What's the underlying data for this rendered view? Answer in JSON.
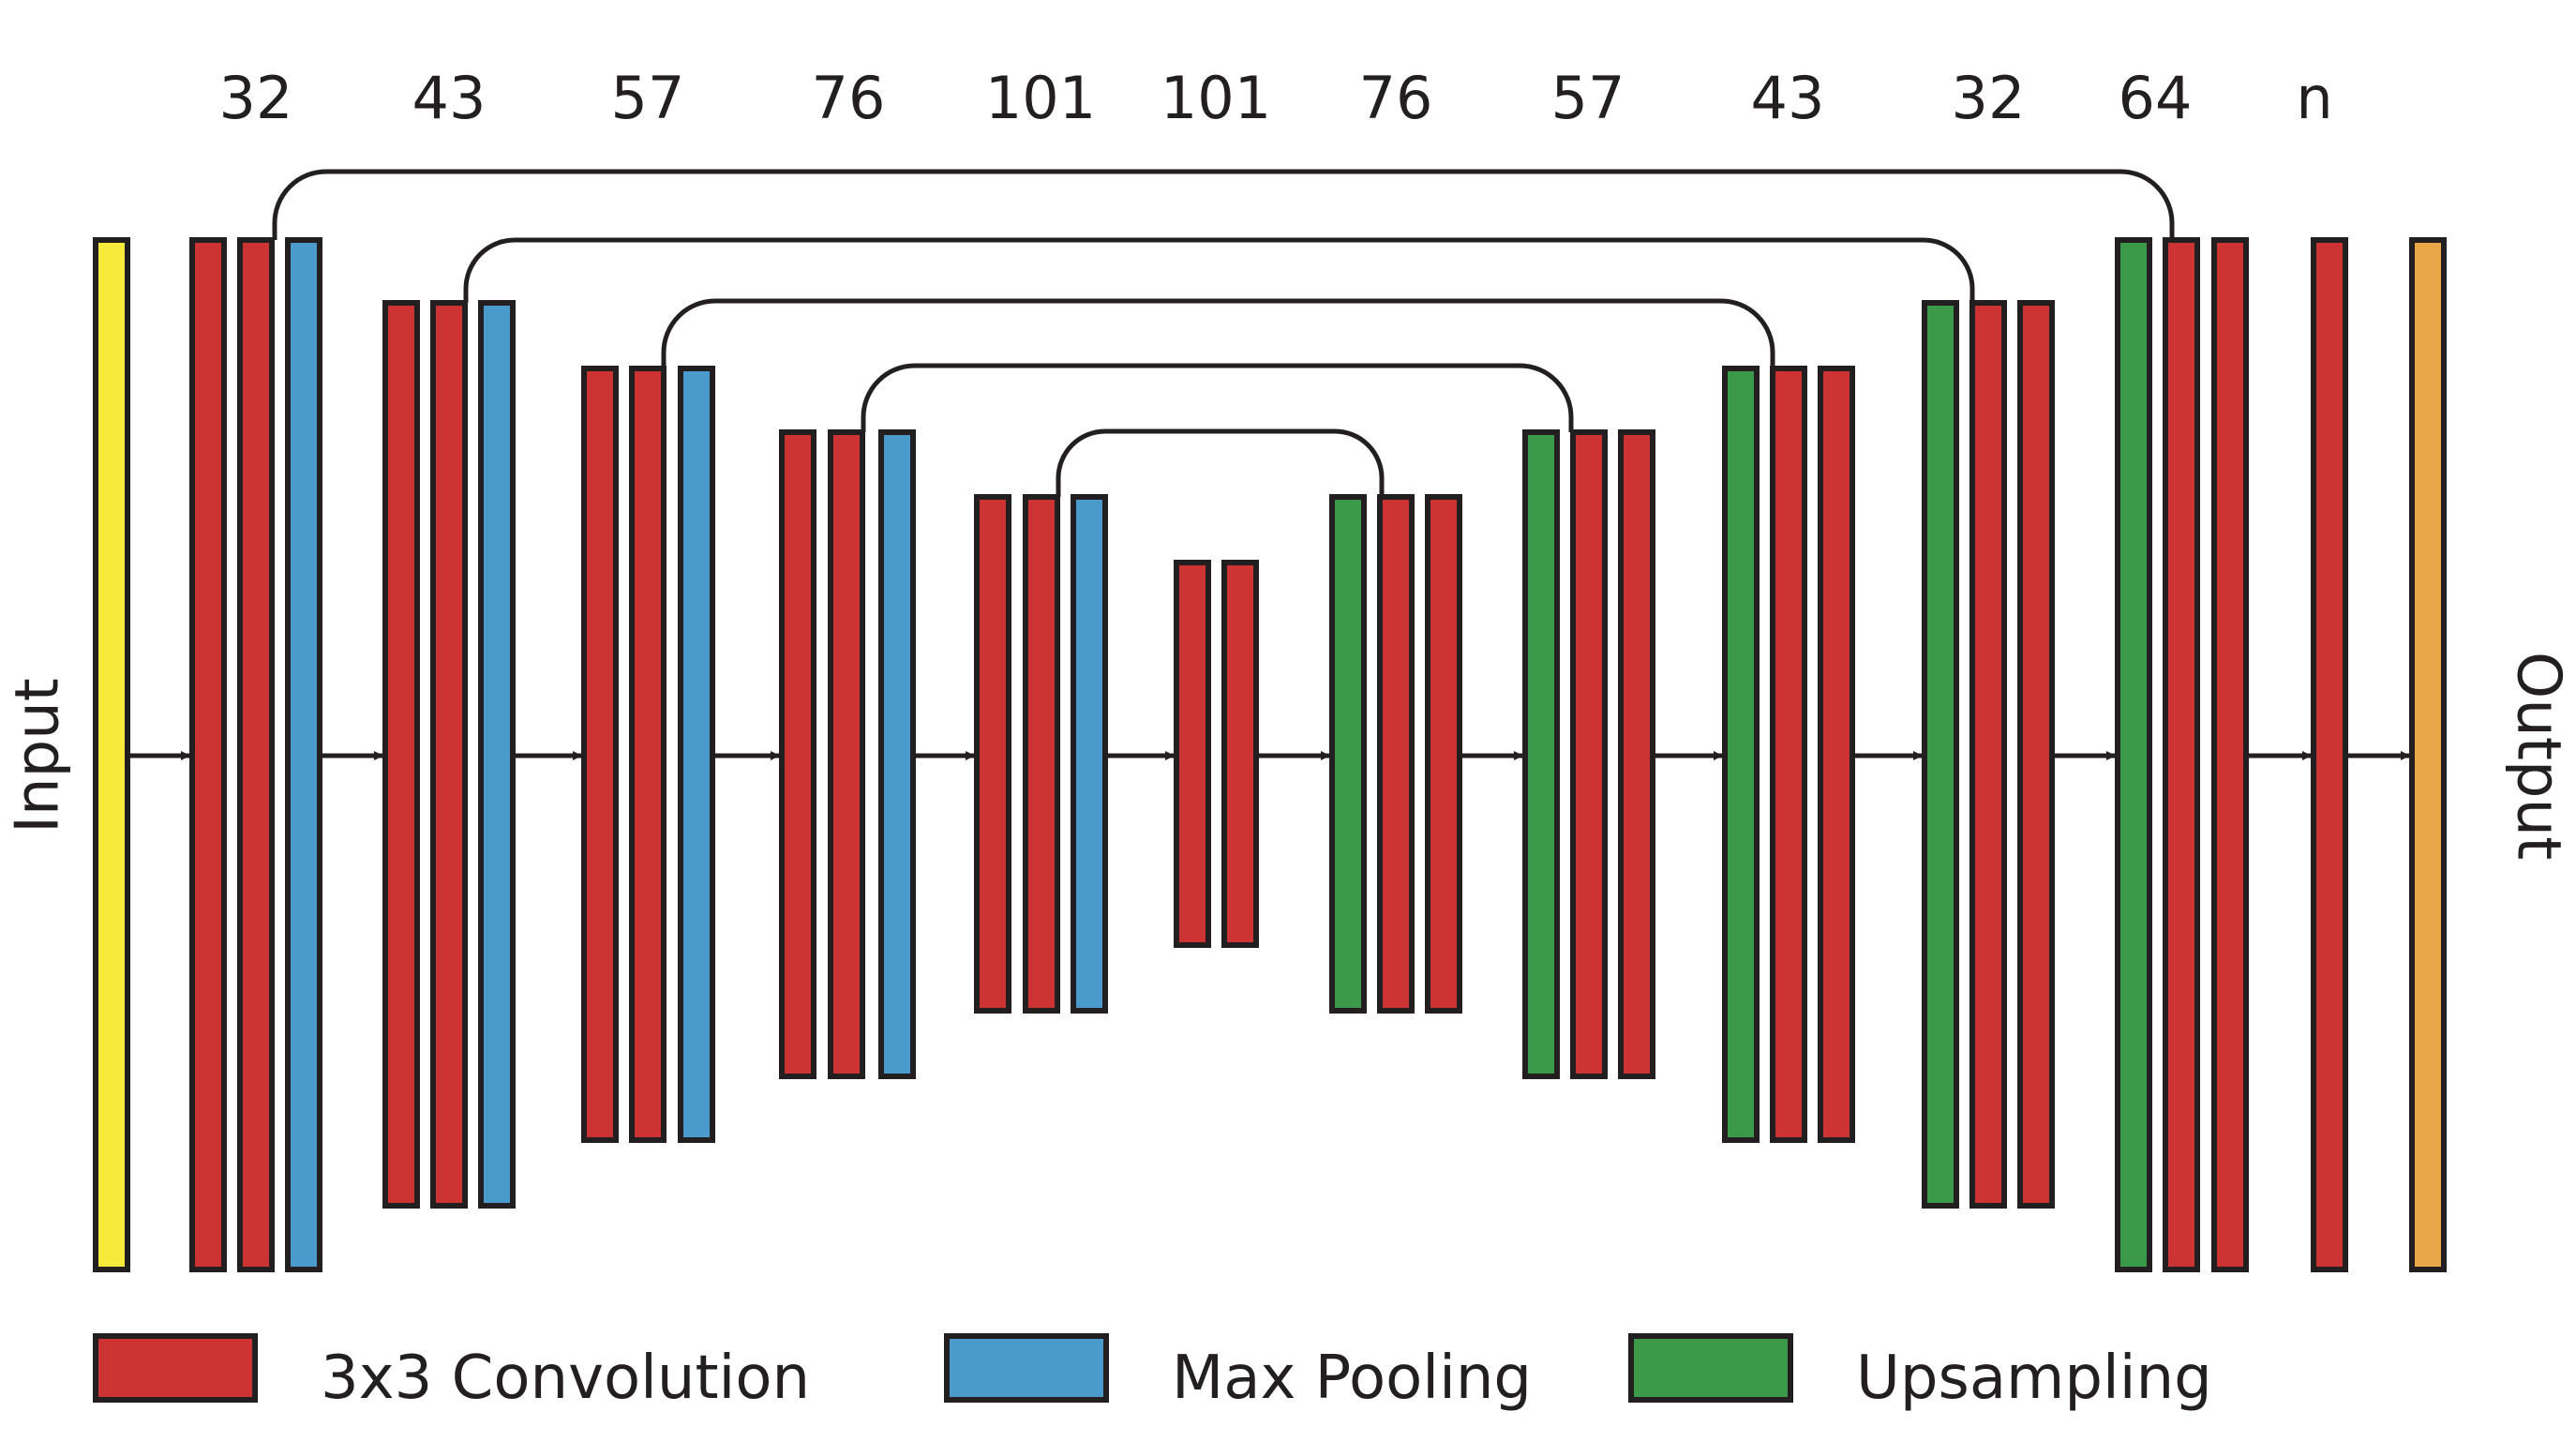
{
  "channel_labels": [
    "32",
    "43",
    "57",
    "76",
    "101",
    "101",
    "76",
    "57",
    "43",
    "32",
    "64",
    "n"
  ],
  "side_labels": {
    "input": "Input",
    "output": "Output"
  },
  "legend": [
    {
      "key": "conv",
      "label": "3x3 Convolution"
    },
    {
      "key": "pool",
      "label": "Max Pooling"
    },
    {
      "key": "up",
      "label": "Upsampling"
    }
  ],
  "colors": {
    "conv": "#cc3333",
    "pool": "#4a9bcc",
    "up": "#3a9a4a",
    "input": "#f7ea3a",
    "output": "#e8a848",
    "stroke": "#231f20"
  },
  "blocks": [
    {
      "name": "input-layer",
      "kind": "input"
    },
    {
      "name": "enc1-conv-a",
      "kind": "conv"
    },
    {
      "name": "enc1-conv-b",
      "kind": "conv"
    },
    {
      "name": "enc1-pool",
      "kind": "pool"
    },
    {
      "name": "enc2-conv-a",
      "kind": "conv"
    },
    {
      "name": "enc2-conv-b",
      "kind": "conv"
    },
    {
      "name": "enc2-pool",
      "kind": "pool"
    },
    {
      "name": "enc3-conv-a",
      "kind": "conv"
    },
    {
      "name": "enc3-conv-b",
      "kind": "conv"
    },
    {
      "name": "enc3-pool",
      "kind": "pool"
    },
    {
      "name": "enc4-conv-a",
      "kind": "conv"
    },
    {
      "name": "enc4-conv-b",
      "kind": "conv"
    },
    {
      "name": "enc4-pool",
      "kind": "pool"
    },
    {
      "name": "enc5-conv-a",
      "kind": "conv"
    },
    {
      "name": "enc5-conv-b",
      "kind": "conv"
    },
    {
      "name": "enc5-pool",
      "kind": "pool"
    },
    {
      "name": "bottleneck-conv-a",
      "kind": "conv"
    },
    {
      "name": "bottleneck-conv-b",
      "kind": "conv"
    },
    {
      "name": "dec5-upsample",
      "kind": "up"
    },
    {
      "name": "dec5-conv-a",
      "kind": "conv"
    },
    {
      "name": "dec5-conv-b",
      "kind": "conv"
    },
    {
      "name": "dec4-upsample",
      "kind": "up"
    },
    {
      "name": "dec4-conv-a",
      "kind": "conv"
    },
    {
      "name": "dec4-conv-b",
      "kind": "conv"
    },
    {
      "name": "dec3-upsample",
      "kind": "up"
    },
    {
      "name": "dec3-conv-a",
      "kind": "conv"
    },
    {
      "name": "dec3-conv-b",
      "kind": "conv"
    },
    {
      "name": "dec2-upsample",
      "kind": "up"
    },
    {
      "name": "dec2-conv-a",
      "kind": "conv"
    },
    {
      "name": "dec2-conv-b",
      "kind": "conv"
    },
    {
      "name": "dec1-upsample",
      "kind": "up"
    },
    {
      "name": "dec1-conv-a",
      "kind": "conv"
    },
    {
      "name": "dec1-conv-b",
      "kind": "conv"
    },
    {
      "name": "final-conv",
      "kind": "conv"
    },
    {
      "name": "output-layer",
      "kind": "output"
    }
  ]
}
